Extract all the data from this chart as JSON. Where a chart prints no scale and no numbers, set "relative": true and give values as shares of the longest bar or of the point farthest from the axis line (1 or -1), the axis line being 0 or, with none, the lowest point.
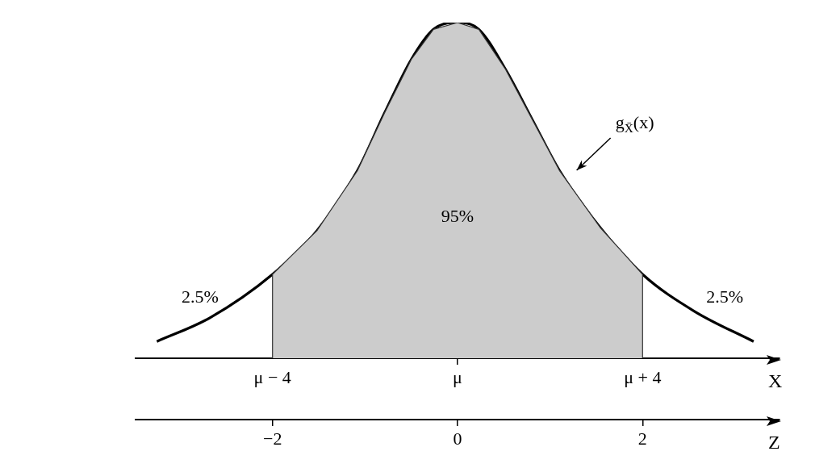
{
  "chart_data": {
    "type": "line",
    "relative": true,
    "grid": false,
    "legend": false,
    "marker": "none",
    "line_style": "solid",
    "xlabel": "Z",
    "x2label": "X",
    "xlim": [
      -3.48,
      3.48
    ],
    "xticks": [
      {
        "value": -2,
        "label": "−2"
      },
      {
        "value": 0,
        "label": "0"
      },
      {
        "value": 2,
        "label": "2"
      }
    ],
    "series": [
      {
        "type": "area",
        "color": "#cccccc",
        "x": [
          -2,
          -2,
          -1.52,
          -1.08,
          -0.79,
          -0.5,
          -0.26,
          0,
          0.23,
          0.52,
          0.81,
          1.1,
          1.54,
          2,
          2
        ],
        "values": [
          0,
          0.25,
          0.38,
          0.56,
          0.73,
          0.89,
          0.98,
          1,
          0.98,
          0.86,
          0.71,
          0.56,
          0.39,
          0.25,
          0
        ]
      },
      {
        "type": "line",
        "color": "#000000",
        "x": [
          -3.25,
          -2.68,
          -2,
          -1.52,
          -1.08,
          -0.79,
          -0.5,
          -0.26,
          0,
          0.23,
          0.52,
          0.81,
          1.1,
          1.54,
          2,
          2.56,
          3.2
        ],
        "values": [
          0.05,
          0.12,
          0.25,
          0.38,
          0.56,
          0.73,
          0.89,
          0.98,
          1,
          0.98,
          0.86,
          0.71,
          0.56,
          0.39,
          0.25,
          0.14,
          0.05
        ]
      }
    ],
    "annotations": [
      "95%",
      "2.5%",
      "2.5%",
      "g$_{X̄}$(x)",
      "μ − 4",
      "μ",
      "μ + 4"
    ]
  }
}
